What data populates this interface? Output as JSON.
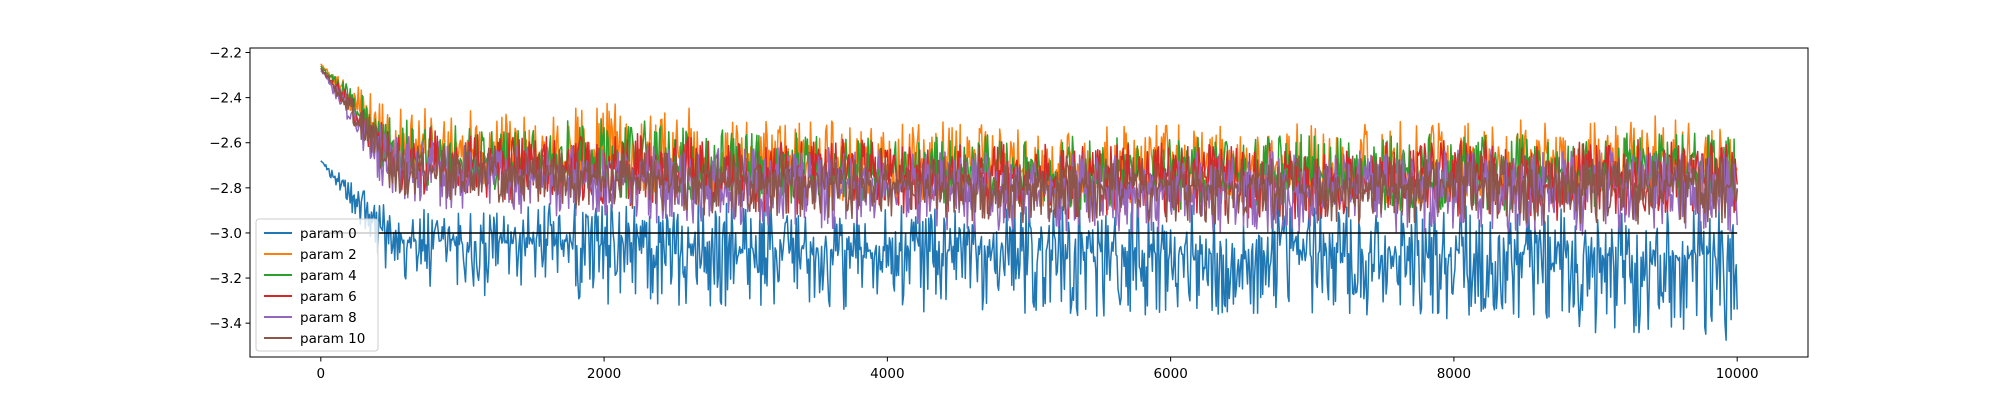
{
  "chart_data": {
    "type": "line",
    "title": "",
    "xlabel": "",
    "ylabel": "",
    "xlim": [
      -500,
      10500
    ],
    "ylim": [
      -3.55,
      -2.18
    ],
    "x_ticks": [
      0,
      2000,
      4000,
      6000,
      8000,
      10000
    ],
    "y_ticks": [
      -3.4,
      -3.2,
      -3.0,
      -2.8,
      -2.6,
      -2.4,
      -2.2
    ],
    "grid": false,
    "legend_position": "lower-left",
    "x": [
      0,
      500,
      1000,
      1500,
      2000,
      2500,
      3000,
      3500,
      4000,
      4500,
      5000,
      5500,
      6000,
      6500,
      7000,
      7500,
      8000,
      8500,
      9000,
      9500,
      10000
    ],
    "series": [
      {
        "name": "param 0",
        "color": "#1f77b4",
        "values": [
          -2.68,
          -3.03,
          -3.04,
          -3.05,
          -3.06,
          -3.06,
          -3.07,
          -3.07,
          -3.08,
          -3.08,
          -3.08,
          -3.09,
          -3.09,
          -3.09,
          -3.09,
          -3.1,
          -3.1,
          -3.1,
          -3.1,
          -3.1,
          -3.1
        ],
        "low_envelope": [
          -2.68,
          -3.22,
          -3.27,
          -3.3,
          -3.32,
          -3.32,
          -3.33,
          -3.34,
          -3.35,
          -3.35,
          -3.36,
          -3.37,
          -3.38,
          -3.37,
          -3.37,
          -3.38,
          -3.39,
          -3.39,
          -3.46,
          -3.44,
          -3.49
        ],
        "high_envelope": [
          -2.68,
          -2.88,
          -2.88,
          -2.87,
          -2.86,
          -2.88,
          -2.86,
          -2.87,
          -2.87,
          -2.87,
          -2.88,
          -2.88,
          -2.87,
          -2.88,
          -2.87,
          -2.88,
          -2.88,
          -2.88,
          -2.88,
          -2.88,
          -2.88
        ]
      },
      {
        "name": "param 2",
        "color": "#ff7f0e",
        "values": [
          -2.25,
          -2.64,
          -2.66,
          -2.67,
          -2.68,
          -2.69,
          -2.7,
          -2.7,
          -2.71,
          -2.71,
          -2.72,
          -2.72,
          -2.72,
          -2.72,
          -2.72,
          -2.72,
          -2.72,
          -2.72,
          -2.72,
          -2.72,
          -2.72
        ],
        "low_envelope": [
          -2.25,
          -2.76,
          -2.78,
          -2.8,
          -2.82,
          -2.84,
          -2.85,
          -2.86,
          -2.86,
          -2.87,
          -2.88,
          -2.88,
          -2.88,
          -2.88,
          -2.88,
          -2.88,
          -2.88,
          -2.88,
          -2.88,
          -2.88,
          -2.88
        ],
        "high_envelope": [
          -2.25,
          -2.42,
          -2.45,
          -2.47,
          -2.4,
          -2.43,
          -2.49,
          -2.5,
          -2.5,
          -2.51,
          -2.52,
          -2.52,
          -2.52,
          -2.52,
          -2.51,
          -2.52,
          -2.46,
          -2.5,
          -2.5,
          -2.46,
          -2.52
        ]
      },
      {
        "name": "param 4",
        "color": "#2ca02c",
        "values": [
          -2.26,
          -2.66,
          -2.68,
          -2.69,
          -2.7,
          -2.71,
          -2.72,
          -2.72,
          -2.73,
          -2.73,
          -2.74,
          -2.74,
          -2.74,
          -2.74,
          -2.74,
          -2.74,
          -2.74,
          -2.74,
          -2.74,
          -2.74,
          -2.74
        ],
        "low_envelope": [
          -2.26,
          -2.78,
          -2.8,
          -2.82,
          -2.84,
          -2.86,
          -2.87,
          -2.88,
          -2.88,
          -2.89,
          -2.9,
          -2.9,
          -2.9,
          -2.9,
          -2.9,
          -2.9,
          -2.9,
          -2.9,
          -2.9,
          -2.9,
          -2.9
        ],
        "high_envelope": [
          -2.26,
          -2.48,
          -2.5,
          -2.52,
          -2.48,
          -2.52,
          -2.55,
          -2.55,
          -2.56,
          -2.56,
          -2.57,
          -2.57,
          -2.57,
          -2.57,
          -2.56,
          -2.57,
          -2.55,
          -2.56,
          -2.56,
          -2.55,
          -2.57
        ]
      },
      {
        "name": "param 6",
        "color": "#d62728",
        "values": [
          -2.27,
          -2.68,
          -2.7,
          -2.71,
          -2.72,
          -2.73,
          -2.74,
          -2.74,
          -2.75,
          -2.75,
          -2.76,
          -2.76,
          -2.76,
          -2.76,
          -2.76,
          -2.76,
          -2.76,
          -2.76,
          -2.76,
          -2.76,
          -2.76
        ],
        "low_envelope": [
          -2.27,
          -2.82,
          -2.84,
          -2.86,
          -2.88,
          -2.9,
          -2.91,
          -2.92,
          -2.92,
          -2.93,
          -2.94,
          -2.94,
          -2.94,
          -2.94,
          -2.94,
          -2.94,
          -2.94,
          -2.94,
          -2.95,
          -2.94,
          -2.95
        ],
        "high_envelope": [
          -2.27,
          -2.52,
          -2.54,
          -2.56,
          -2.55,
          -2.57,
          -2.58,
          -2.58,
          -2.59,
          -2.59,
          -2.6,
          -2.6,
          -2.6,
          -2.6,
          -2.59,
          -2.6,
          -2.58,
          -2.59,
          -2.59,
          -2.58,
          -2.6
        ]
      },
      {
        "name": "param 8",
        "color": "#9467bd",
        "values": [
          -2.28,
          -2.72,
          -2.74,
          -2.75,
          -2.76,
          -2.77,
          -2.78,
          -2.78,
          -2.79,
          -2.79,
          -2.8,
          -2.8,
          -2.8,
          -2.8,
          -2.8,
          -2.8,
          -2.8,
          -2.8,
          -2.8,
          -2.8,
          -2.8
        ],
        "low_envelope": [
          -2.28,
          -2.88,
          -2.9,
          -2.92,
          -2.94,
          -2.96,
          -2.97,
          -2.98,
          -2.98,
          -2.99,
          -3.0,
          -3.0,
          -3.0,
          -3.0,
          -3.0,
          -3.0,
          -3.0,
          -3.0,
          -3.02,
          -3.0,
          -3.02
        ],
        "high_envelope": [
          -2.28,
          -2.56,
          -2.58,
          -2.6,
          -2.6,
          -2.61,
          -2.62,
          -2.62,
          -2.63,
          -2.63,
          -2.64,
          -2.64,
          -2.64,
          -2.64,
          -2.63,
          -2.64,
          -2.62,
          -2.63,
          -2.63,
          -2.62,
          -2.64
        ]
      },
      {
        "name": "param 10",
        "color": "#8c564b",
        "values": [
          -2.27,
          -2.72,
          -2.73,
          -2.74,
          -2.75,
          -2.76,
          -2.77,
          -2.77,
          -2.78,
          -2.78,
          -2.79,
          -2.79,
          -2.79,
          -2.79,
          -2.79,
          -2.79,
          -2.79,
          -2.79,
          -2.79,
          -2.79,
          -2.79
        ],
        "low_envelope": [
          -2.27,
          -2.84,
          -2.86,
          -2.88,
          -2.9,
          -2.92,
          -2.93,
          -2.94,
          -2.94,
          -2.95,
          -2.96,
          -2.96,
          -2.96,
          -2.96,
          -2.96,
          -2.96,
          -2.96,
          -2.96,
          -2.97,
          -2.96,
          -2.97
        ],
        "high_envelope": [
          -2.27,
          -2.58,
          -2.6,
          -2.62,
          -2.62,
          -2.63,
          -2.64,
          -2.64,
          -2.65,
          -2.65,
          -2.66,
          -2.66,
          -2.66,
          -2.66,
          -2.65,
          -2.66,
          -2.64,
          -2.65,
          -2.65,
          -2.64,
          -2.66
        ]
      }
    ],
    "reference_line": {
      "y": -3.0,
      "x_range": [
        0,
        10000
      ],
      "color": "#000000"
    }
  }
}
